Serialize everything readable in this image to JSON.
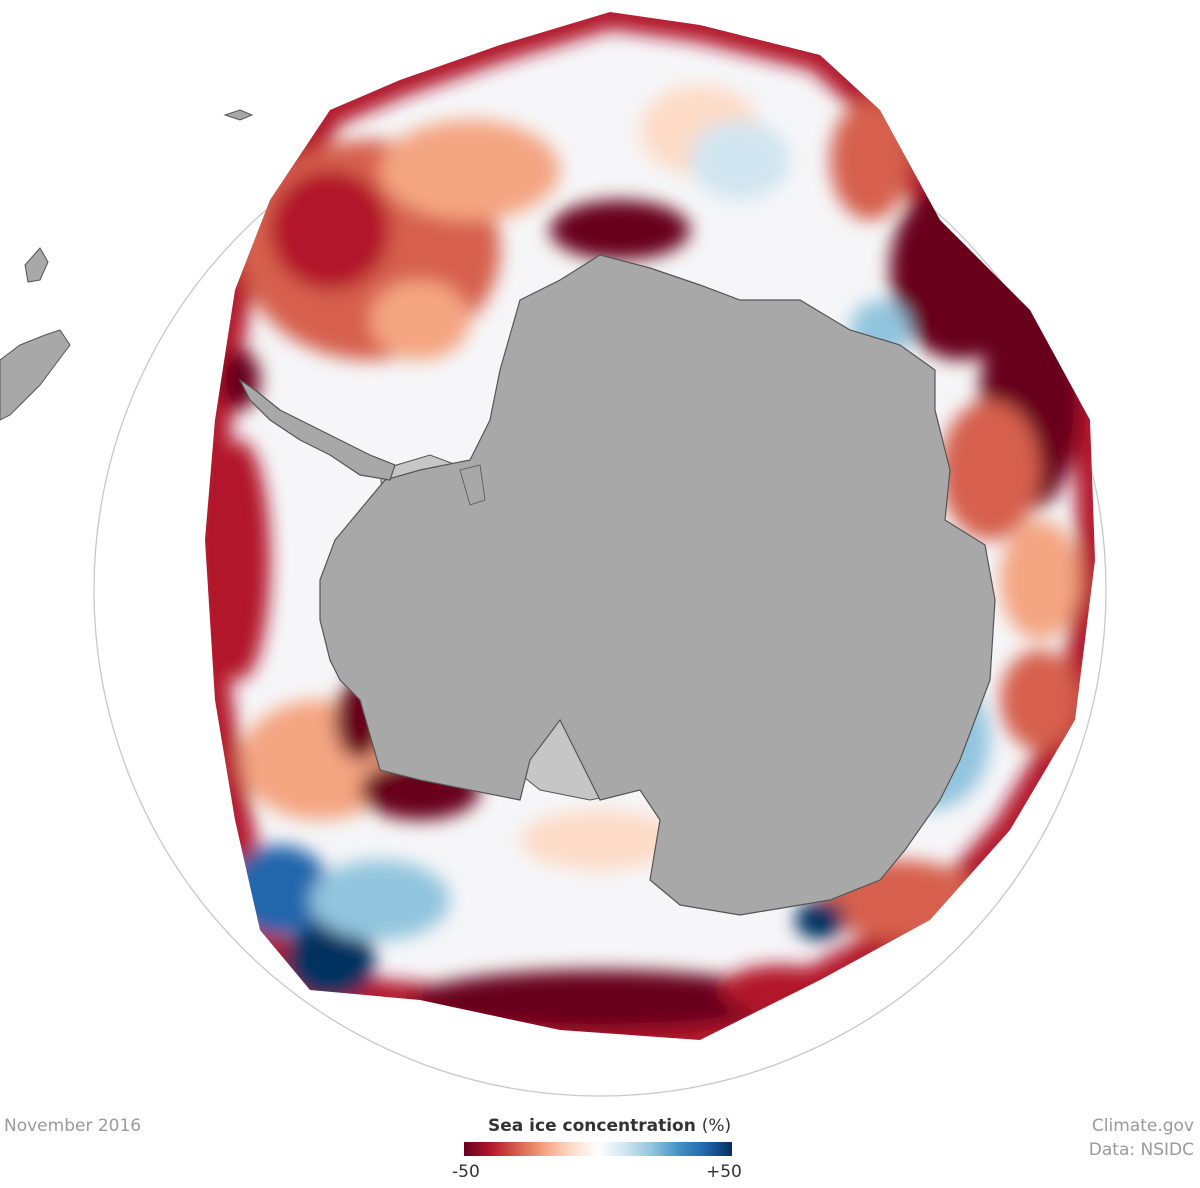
{
  "map": {
    "date": "November 2016",
    "legend": {
      "title": "Sea ice concentration",
      "unit": "(%)",
      "min_label": "-50",
      "max_label": "+50",
      "min_value": -50,
      "max_value": 50,
      "colors": [
        "#67001f",
        "#b2182b",
        "#d6604d",
        "#f4a582",
        "#fddbc7",
        "#ffffff",
        "#d1e5f0",
        "#92c5de",
        "#4393c3",
        "#2166ac",
        "#053061"
      ]
    },
    "credits": {
      "source": "Climate.gov",
      "data": "Data: NSIDC"
    },
    "colors": {
      "land": "#a8a8a8",
      "ice_shelf": "#c6c6c6",
      "coast_line": "#555555",
      "graticule": "#c8c8c8"
    }
  }
}
